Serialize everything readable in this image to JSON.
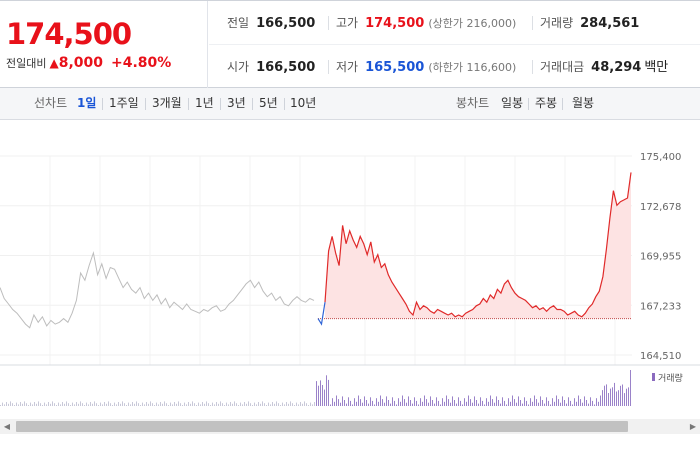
{
  "quote": {
    "price": "174,500",
    "change_label": "전일대비",
    "change_arrow": "▲",
    "change_amount": "8,000",
    "change_pct": "+4.80%",
    "prev_close": {
      "label": "전일",
      "value": "166,500"
    },
    "high": {
      "label": "고가",
      "value": "174,500",
      "sub": "(상한가 216,000)"
    },
    "volume": {
      "label": "거래량",
      "value": "284,561"
    },
    "open": {
      "label": "시가",
      "value": "166,500"
    },
    "low": {
      "label": "저가",
      "value": "165,500",
      "sub": "(하한가 116,600)"
    },
    "amount": {
      "label": "거래대금",
      "value": "48,294",
      "unit": "백만"
    }
  },
  "toolbar": {
    "line_chart_label": "선차트",
    "periods": [
      "1일",
      "1주일",
      "3개월",
      "1년",
      "3년",
      "5년",
      "10년"
    ],
    "active_period": "1일",
    "candle_chart_label": "봉차트",
    "candles": [
      "일봉",
      "주봉",
      "월봉"
    ]
  },
  "chart_data": {
    "type": "line",
    "y_ticks": [
      "175,400",
      "172,678",
      "169,955",
      "167,233",
      "164,510"
    ],
    "ylim": [
      164510,
      175400
    ],
    "prev_close": 166500,
    "volume_legend": "거래량",
    "prev_day_series": [
      168200,
      167600,
      167300,
      167000,
      166800,
      166500,
      166200,
      166000,
      166700,
      166300,
      166600,
      166100,
      166400,
      166200,
      166300,
      166500,
      166300,
      166800,
      167500,
      169000,
      168600,
      169400,
      170100,
      168900,
      169500,
      168700,
      169300,
      169200,
      168700,
      168200,
      168500,
      168100,
      167900,
      168200,
      167600,
      167900,
      167500,
      167800,
      167300,
      167600,
      167100,
      167400,
      167200,
      167000,
      167300,
      167000,
      166900,
      166800,
      167000,
      166900,
      167100,
      167200,
      166900,
      167000,
      167300,
      167500,
      167800,
      168100,
      168400,
      168600,
      168200,
      168500,
      168000,
      167700,
      167900,
      167500,
      167700,
      167300,
      167200,
      167500,
      167700,
      167500,
      167400,
      167600,
      167500
    ],
    "today_series": [
      166500,
      166200,
      167400,
      170200,
      171000,
      170100,
      169400,
      171600,
      170600,
      171300,
      170800,
      170400,
      171000,
      170600,
      170000,
      170700,
      169600,
      170000,
      169300,
      169500,
      168900,
      168500,
      168200,
      167900,
      167600,
      167300,
      166900,
      166700,
      167400,
      167000,
      167200,
      167100,
      166900,
      166800,
      167000,
      166900,
      166800,
      166700,
      166800,
      166600,
      166700,
      166600,
      166800,
      166900,
      167000,
      167200,
      167300,
      167600,
      167400,
      167800,
      167600,
      168100,
      167900,
      168400,
      168600,
      168200,
      167900,
      167700,
      167600,
      167500,
      167300,
      167100,
      167200,
      167000,
      167100,
      166900,
      167100,
      167200,
      167000,
      167000,
      166900,
      166700,
      166800,
      166900,
      166700,
      166600,
      166800,
      167100,
      167300,
      167700,
      168000,
      168800,
      170300,
      172000,
      173500,
      172700,
      172900,
      173000,
      173100,
      174500
    ]
  }
}
